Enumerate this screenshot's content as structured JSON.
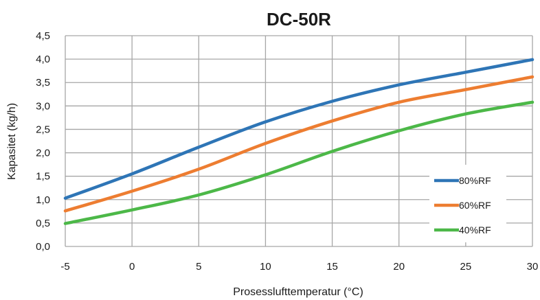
{
  "chart_data": {
    "type": "line",
    "title": "DC-50R",
    "xlabel": "Prosesslufttemperatur (°C)",
    "ylabel": "Kapasitet (kg/h)",
    "xlim": [
      -5,
      30
    ],
    "ylim": [
      0,
      4.5
    ],
    "x_ticks": [
      -5,
      0,
      5,
      10,
      15,
      20,
      25,
      30
    ],
    "x_tick_labels": [
      "-5",
      "0",
      "5",
      "10",
      "15",
      "20",
      "25",
      "30"
    ],
    "y_ticks": [
      0,
      0.5,
      1,
      1.5,
      2,
      2.5,
      3,
      3.5,
      4,
      4.5
    ],
    "y_tick_labels": [
      "0,0",
      "0,5",
      "1,0",
      "1,5",
      "2,0",
      "2,5",
      "3,0",
      "3,5",
      "4,0",
      "4,5"
    ],
    "grid": true,
    "legend_position": "right",
    "x": [
      -5,
      0,
      5,
      10,
      15,
      20,
      25,
      30
    ],
    "series": [
      {
        "name": "80%RF",
        "color": "#2e75b6",
        "values": [
          1.03,
          1.55,
          2.12,
          2.66,
          3.1,
          3.45,
          3.72,
          3.99
        ]
      },
      {
        "name": "60%RF",
        "color": "#ed7d31",
        "values": [
          0.76,
          1.18,
          1.65,
          2.2,
          2.68,
          3.08,
          3.35,
          3.62
        ]
      },
      {
        "name": "40%RF",
        "color": "#4cb848",
        "values": [
          0.49,
          0.78,
          1.1,
          1.53,
          2.03,
          2.47,
          2.83,
          3.08
        ]
      }
    ]
  }
}
